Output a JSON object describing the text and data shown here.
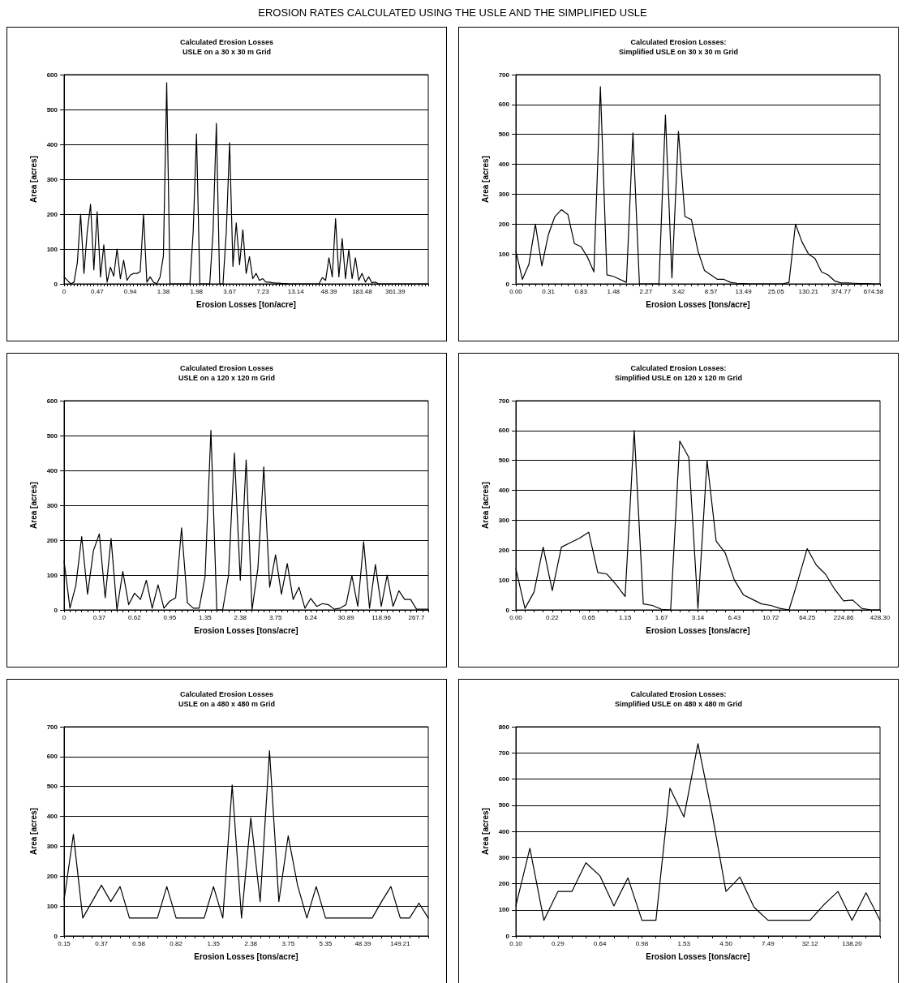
{
  "chart_data": [
    {
      "type": "line",
      "title": "Calculated Erosion Losses",
      "subtitle": "USLE on a 30 x 30 m Grid",
      "xlabel": "Erosion Losses [ton/acre]",
      "ylabel": "Area [acres]",
      "annotations": [
        "EROSION RATES CALCULATED USING THE USLE AND THE SIMPLIFIED USLE"
      ],
      "categories": [
        "0",
        null,
        null,
        null,
        null,
        null,
        null,
        null,
        null,
        null,
        "0.47",
        null,
        null,
        null,
        null,
        null,
        null,
        null,
        null,
        null,
        "0.94",
        null,
        null,
        null,
        null,
        null,
        null,
        null,
        null,
        null,
        "1.38",
        null,
        null,
        null,
        null,
        null,
        null,
        null,
        null,
        null,
        "1.98",
        null,
        null,
        null,
        null,
        null,
        null,
        null,
        null,
        null,
        "3.67",
        null,
        null,
        null,
        null,
        null,
        null,
        null,
        null,
        null,
        "7.23",
        null,
        null,
        null,
        null,
        null,
        null,
        null,
        null,
        null,
        "13.14",
        null,
        null,
        null,
        null,
        null,
        null,
        null,
        null,
        null,
        "48.39",
        null,
        null,
        null,
        null,
        null,
        null,
        null,
        null,
        null,
        "183.48",
        null,
        null,
        null,
        null,
        null,
        null,
        null,
        null,
        null,
        "361.39",
        null,
        null,
        null,
        null,
        null,
        null,
        null,
        null,
        null,
        null
      ],
      "values": [
        20,
        10,
        0,
        5,
        60,
        200,
        30,
        150,
        228,
        40,
        207,
        20,
        112,
        5,
        48,
        22,
        100,
        15,
        68,
        10,
        25,
        30,
        30,
        35,
        200,
        5,
        20,
        5,
        0,
        20,
        80,
        577,
        0,
        0,
        0,
        0,
        0,
        0,
        0,
        150,
        430,
        0,
        0,
        0,
        0,
        150,
        460,
        0,
        0,
        150,
        405,
        50,
        175,
        55,
        155,
        30,
        78,
        15,
        30,
        10,
        15,
        5,
        5,
        3,
        2,
        2,
        1,
        1,
        0,
        0,
        0,
        0,
        0,
        0,
        0,
        0,
        0,
        0,
        18,
        10,
        75,
        20,
        187,
        20,
        130,
        15,
        98,
        15,
        75,
        10,
        30,
        5,
        20,
        3,
        5,
        0,
        0,
        0,
        0,
        0,
        0,
        0,
        0,
        0,
        0,
        0,
        0,
        0,
        0,
        0,
        0
      ],
      "color": "#000000",
      "ylim": [
        0,
        600
      ],
      "yticks": [
        0,
        100,
        200,
        300,
        400,
        500,
        600
      ],
      "grid": "y",
      "marker": "none"
    },
    {
      "type": "line",
      "title": "Calculated Erosion Losses:",
      "subtitle": "Simplified USLE on 30 x 30 m Grid",
      "xlabel": "Erosion Losses [tons/acre]",
      "ylabel": "Area [acres]",
      "categories": [
        "0.00",
        null,
        null,
        null,
        null,
        "0.31",
        null,
        null,
        null,
        null,
        "0.83",
        null,
        null,
        null,
        null,
        "1.48",
        null,
        null,
        null,
        null,
        "2.27",
        null,
        null,
        null,
        null,
        "3.42",
        null,
        null,
        null,
        null,
        "8.57",
        null,
        null,
        null,
        null,
        "13.49",
        null,
        null,
        null,
        null,
        "25.05",
        null,
        null,
        null,
        null,
        "130.21",
        null,
        null,
        null,
        null,
        "374.77",
        null,
        null,
        null,
        null,
        "674.58",
        null
      ],
      "values": [
        110,
        15,
        65,
        200,
        60,
        165,
        225,
        248,
        232,
        135,
        125,
        90,
        40,
        660,
        30,
        25,
        15,
        5,
        505,
        0,
        0,
        0,
        0,
        565,
        20,
        510,
        225,
        215,
        110,
        45,
        30,
        15,
        15,
        5,
        2,
        1,
        0,
        0,
        0,
        0,
        0,
        0,
        5,
        200,
        140,
        100,
        85,
        40,
        30,
        10,
        3,
        3,
        2,
        1,
        1,
        0,
        0
      ],
      "color": "#000000",
      "ylim": [
        0,
        700
      ],
      "yticks": [
        0,
        100,
        200,
        300,
        400,
        500,
        600,
        700
      ],
      "grid": "y",
      "marker": "none"
    },
    {
      "type": "line",
      "title": "Calculated Erosion Losses",
      "subtitle": "USLE on a 120 x 120 m Grid",
      "xlabel": "Erosion Losses [tons/acre]",
      "ylabel": "Area [acres]",
      "categories": [
        "0",
        null,
        null,
        null,
        null,
        null,
        "0.37",
        null,
        null,
        null,
        null,
        null,
        "0.62",
        null,
        null,
        null,
        null,
        null,
        "0.95",
        null,
        null,
        null,
        null,
        null,
        "1.35",
        null,
        null,
        null,
        null,
        null,
        "2.38",
        null,
        null,
        null,
        null,
        null,
        "3.75",
        null,
        null,
        null,
        null,
        null,
        "6.24",
        null,
        null,
        null,
        null,
        null,
        "30.89",
        null,
        null,
        null,
        null,
        null,
        "118.96",
        null,
        null,
        null,
        null,
        null,
        "267.7",
        null,
        null
      ],
      "values": [
        140,
        5,
        70,
        210,
        45,
        170,
        218,
        35,
        205,
        0,
        110,
        15,
        48,
        30,
        85,
        5,
        72,
        5,
        25,
        35,
        235,
        20,
        5,
        5,
        95,
        515,
        0,
        0,
        100,
        450,
        85,
        430,
        0,
        120,
        410,
        65,
        158,
        45,
        133,
        30,
        65,
        5,
        33,
        10,
        18,
        15,
        2,
        5,
        15,
        98,
        10,
        195,
        5,
        130,
        10,
        100,
        10,
        55,
        30,
        30,
        2,
        2,
        2
      ],
      "color": "#000000",
      "ylim": [
        0,
        600
      ],
      "yticks": [
        0,
        100,
        200,
        300,
        400,
        500,
        600
      ],
      "grid": "y",
      "marker": "none"
    },
    {
      "type": "line",
      "title": "Calculated Erosion Losses:",
      "subtitle": "Simplified USLE on 120 x 120 m Grid",
      "xlabel": "Erosion Losses [tons/acre]",
      "ylabel": "Area [acres]",
      "categories": [
        "0.00",
        null,
        null,
        null,
        "0.22",
        null,
        null,
        null,
        "0.65",
        null,
        null,
        null,
        "1.15",
        null,
        null,
        null,
        "1.67",
        null,
        null,
        null,
        "3.14",
        null,
        null,
        null,
        "6.43",
        null,
        null,
        null,
        "10.72",
        null,
        null,
        null,
        "64.25",
        null,
        null,
        null,
        "224.86",
        null,
        null,
        null,
        "428.30"
      ],
      "values": [
        138,
        5,
        60,
        210,
        65,
        210,
        225,
        240,
        260,
        125,
        120,
        85,
        45,
        600,
        20,
        15,
        2,
        0,
        565,
        510,
        5,
        500,
        230,
        190,
        100,
        50,
        35,
        20,
        15,
        5,
        0,
        100,
        205,
        150,
        120,
        70,
        30,
        33,
        5,
        0,
        0
      ],
      "color": "#000000",
      "ylim": [
        0,
        700
      ],
      "yticks": [
        0,
        100,
        200,
        300,
        400,
        500,
        600,
        700
      ],
      "grid": "y",
      "marker": "none"
    },
    {
      "type": "line",
      "title": "Calculated Erosion Losses",
      "subtitle": "USLE on a 480 x 480 m Grid",
      "xlabel": "Erosion Losses [tons/acre]",
      "ylabel": "Area [acres]",
      "categories": [
        "0.15",
        null,
        null,
        null,
        "0.37",
        null,
        null,
        null,
        "0.58",
        null,
        null,
        null,
        "0.82",
        null,
        null,
        null,
        "1.35",
        null,
        null,
        null,
        "2.38",
        null,
        null,
        null,
        "3.75",
        null,
        null,
        null,
        "5.35",
        null,
        null,
        null,
        "48.39",
        null,
        null,
        null,
        "149.21",
        null,
        null,
        null
      ],
      "values": [
        120,
        340,
        60,
        115,
        170,
        115,
        165,
        60,
        60,
        60,
        60,
        165,
        60,
        60,
        60,
        60,
        165,
        60,
        505,
        60,
        395,
        115,
        620,
        115,
        335,
        170,
        60,
        165,
        60,
        60,
        60,
        60,
        60,
        60,
        115,
        165,
        60,
        60,
        110,
        60
      ],
      "color": "#000000",
      "ylim": [
        0,
        700
      ],
      "yticks": [
        0,
        100,
        200,
        300,
        400,
        500,
        600,
        700
      ],
      "grid": "y",
      "marker": "none"
    },
    {
      "type": "line",
      "title": "Calculated Erosion Losses:",
      "subtitle": "Simplified USLE on 480 x 480 m Grid",
      "xlabel": "Erosion Losses [tons/acre]",
      "ylabel": "Area [acres]",
      "categories": [
        "0.10",
        null,
        null,
        "0.29",
        null,
        null,
        "0.64",
        null,
        null,
        "0.98",
        null,
        null,
        "1.53",
        null,
        null,
        "4.50",
        null,
        null,
        "7.49",
        null,
        null,
        "32.12",
        null,
        null,
        "138.20",
        null,
        null
      ],
      "values": [
        115,
        335,
        60,
        170,
        170,
        280,
        230,
        115,
        222,
        60,
        60,
        565,
        455,
        735,
        470,
        170,
        225,
        110,
        60,
        60,
        60,
        60,
        120,
        170,
        60,
        165,
        60
      ],
      "color": "#000000",
      "ylim": [
        0,
        800
      ],
      "yticks": [
        0,
        100,
        200,
        300,
        400,
        500,
        600,
        700,
        800
      ],
      "grid": "y",
      "marker": "none"
    }
  ]
}
